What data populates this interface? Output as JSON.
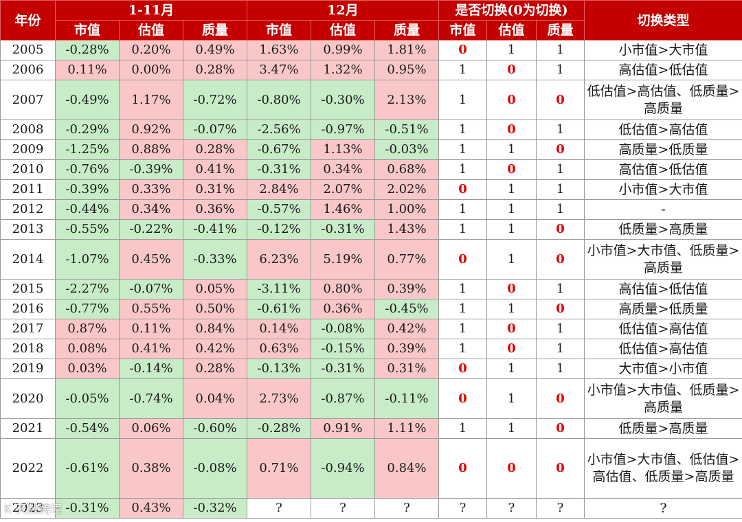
{
  "header": {
    "year": "年份",
    "group_1_11": "1-11月",
    "group_12": "12月",
    "group_switch": "是否切换(0为切换)",
    "switch_type": "切换类型",
    "sub": [
      "市值",
      "估值",
      "质量",
      "市值",
      "估值",
      "质量",
      "市值",
      "估值",
      "质量"
    ]
  },
  "rows": [
    {
      "year": "2005",
      "m111": [
        "-0.28%",
        "0.20%",
        "0.49%"
      ],
      "m12": [
        "1.63%",
        "0.99%",
        "1.81%"
      ],
      "sw": [
        "0",
        "1",
        "1"
      ],
      "type": "小市值>大市值"
    },
    {
      "year": "2006",
      "m111": [
        "0.11%",
        "0.00%",
        "0.28%"
      ],
      "m12": [
        "3.47%",
        "1.32%",
        "0.95%"
      ],
      "sw": [
        "1",
        "0",
        "1"
      ],
      "type": "高估值>低估值"
    },
    {
      "year": "2007",
      "m111": [
        "-0.49%",
        "1.17%",
        "-0.72%"
      ],
      "m12": [
        "-0.80%",
        "-0.30%",
        "2.13%"
      ],
      "sw": [
        "1",
        "0",
        "0"
      ],
      "type": "低估值>高估值、低质量>高质量"
    },
    {
      "year": "2008",
      "m111": [
        "-0.29%",
        "0.92%",
        "-0.07%"
      ],
      "m12": [
        "-2.56%",
        "-0.97%",
        "-0.51%"
      ],
      "sw": [
        "1",
        "0",
        "1"
      ],
      "type": "低估值>高估值"
    },
    {
      "year": "2009",
      "m111": [
        "-1.25%",
        "0.88%",
        "0.28%"
      ],
      "m12": [
        "-0.67%",
        "1.13%",
        "-0.03%"
      ],
      "sw": [
        "1",
        "1",
        "0"
      ],
      "type": "高质量>低质量"
    },
    {
      "year": "2010",
      "m111": [
        "-0.76%",
        "-0.39%",
        "0.41%"
      ],
      "m12": [
        "-0.31%",
        "0.34%",
        "0.68%"
      ],
      "sw": [
        "1",
        "0",
        "1"
      ],
      "type": "高估值>低估值"
    },
    {
      "year": "2011",
      "m111": [
        "-0.39%",
        "0.33%",
        "0.31%"
      ],
      "m12": [
        "2.84%",
        "2.07%",
        "2.02%"
      ],
      "sw": [
        "0",
        "1",
        "1"
      ],
      "type": "小市值>大市值"
    },
    {
      "year": "2012",
      "m111": [
        "-0.44%",
        "0.34%",
        "0.36%"
      ],
      "m12": [
        "-0.57%",
        "1.46%",
        "1.00%"
      ],
      "sw": [
        "1",
        "1",
        "1"
      ],
      "type": "-"
    },
    {
      "year": "2013",
      "m111": [
        "-0.55%",
        "-0.22%",
        "-0.41%"
      ],
      "m12": [
        "-0.12%",
        "-0.31%",
        "1.43%"
      ],
      "sw": [
        "1",
        "1",
        "0"
      ],
      "type": "低质量>高质量"
    },
    {
      "year": "2014",
      "m111": [
        "-1.07%",
        "0.45%",
        "-0.33%"
      ],
      "m12": [
        "6.23%",
        "5.19%",
        "0.77%"
      ],
      "sw": [
        "0",
        "1",
        "0"
      ],
      "type": "小市值>大市值、低质量>高质量"
    },
    {
      "year": "2015",
      "m111": [
        "-2.27%",
        "-0.07%",
        "0.05%"
      ],
      "m12": [
        "-3.11%",
        "0.80%",
        "0.39%"
      ],
      "sw": [
        "1",
        "0",
        "1"
      ],
      "type": "高估值>低估值"
    },
    {
      "year": "2016",
      "m111": [
        "-0.77%",
        "0.55%",
        "0.50%"
      ],
      "m12": [
        "-0.61%",
        "0.36%",
        "-0.45%"
      ],
      "sw": [
        "1",
        "1",
        "0"
      ],
      "type": "高质量>低质量"
    },
    {
      "year": "2017",
      "m111": [
        "0.87%",
        "0.11%",
        "0.84%"
      ],
      "m12": [
        "0.14%",
        "-0.08%",
        "0.42%"
      ],
      "sw": [
        "1",
        "0",
        "1"
      ],
      "type": "低估值>高估值"
    },
    {
      "year": "2018",
      "m111": [
        "0.08%",
        "0.41%",
        "0.42%"
      ],
      "m12": [
        "0.63%",
        "-0.15%",
        "0.39%"
      ],
      "sw": [
        "1",
        "0",
        "1"
      ],
      "type": "低估值>高估值"
    },
    {
      "year": "2019",
      "m111": [
        "0.03%",
        "-0.14%",
        "0.28%"
      ],
      "m12": [
        "-0.13%",
        "-0.31%",
        "0.31%"
      ],
      "sw": [
        "0",
        "1",
        "1"
      ],
      "type": "大市值>小市值"
    },
    {
      "year": "2020",
      "m111": [
        "-0.05%",
        "-0.74%",
        "0.04%"
      ],
      "m12": [
        "2.73%",
        "-0.87%",
        "-0.11%"
      ],
      "sw": [
        "0",
        "1",
        "0"
      ],
      "type": "小市值>大市值、低质量>高质量"
    },
    {
      "year": "2021",
      "m111": [
        "-0.54%",
        "0.06%",
        "-0.60%"
      ],
      "m12": [
        "-0.28%",
        "0.91%",
        "1.11%"
      ],
      "sw": [
        "1",
        "1",
        "0"
      ],
      "type": "低质量>高质量"
    },
    {
      "year": "2022",
      "m111": [
        "-0.61%",
        "0.38%",
        "-0.08%"
      ],
      "m12": [
        "0.71%",
        "-0.94%",
        "0.84%"
      ],
      "sw": [
        "0",
        "0",
        "0"
      ],
      "type": "小市值>大市值、低估值>高估值、低质量>高质量"
    },
    {
      "year": "2023",
      "m111": [
        "-0.31%",
        "0.43%",
        "-0.32%"
      ],
      "m12": [
        "?",
        "?",
        "?"
      ],
      "sw": [
        "?",
        "?",
        "?"
      ],
      "type": "?"
    }
  ],
  "watermark": "K 天数跨境"
}
